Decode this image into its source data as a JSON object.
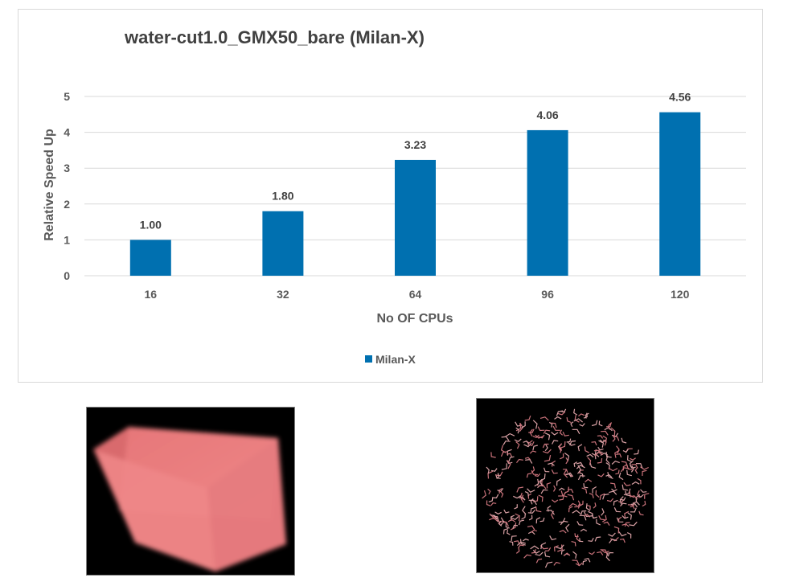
{
  "chart_data": {
    "type": "bar",
    "title": "water-cut1.0_GMX50_bare (Milan-X)",
    "xlabel": "No OF CPUs",
    "ylabel": "Relative Speed Up",
    "categories": [
      "16",
      "32",
      "64",
      "96",
      "120"
    ],
    "series": [
      {
        "name": "Milan-X",
        "values": [
          1.0,
          1.8,
          3.23,
          4.06,
          4.56
        ],
        "data_labels": [
          "1.00",
          "1.80",
          "3.23",
          "4.06",
          "4.56"
        ],
        "color": "#0070b0"
      }
    ],
    "ylim": [
      0,
      5
    ],
    "yticks": [
      "0",
      "1",
      "2",
      "3",
      "4",
      "5"
    ],
    "grid": true,
    "legend": "bottom"
  },
  "images": {
    "left": "water-box-render",
    "right": "water-molecules-render"
  }
}
